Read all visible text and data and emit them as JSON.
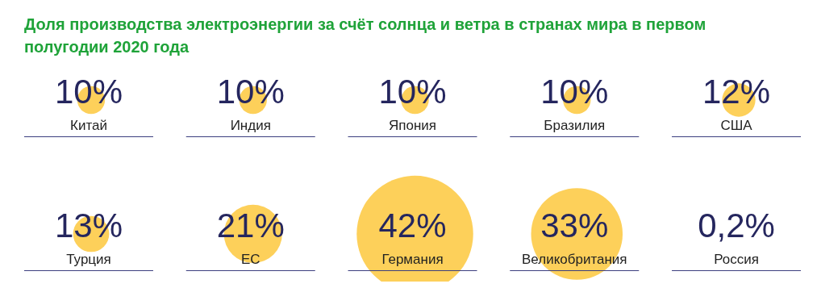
{
  "chart_data": {
    "type": "other",
    "title": "Доля производства электроэнергии за счёт солнца и ветра в странах мира в первом полугодии 2020 года",
    "categories": [
      "Китай",
      "Индия",
      "Япония",
      "Бразилия",
      "США",
      "Турция",
      "ЕС",
      "Германия",
      "Великобритания",
      "Россия"
    ],
    "values": [
      10,
      10,
      10,
      10,
      12,
      13,
      21,
      42,
      33,
      0.2
    ],
    "value_labels": [
      "10%",
      "10%",
      "10%",
      "10%",
      "12%",
      "13%",
      "21%",
      "42%",
      "33%",
      "0,2%"
    ],
    "color": "#fdd05a"
  }
}
